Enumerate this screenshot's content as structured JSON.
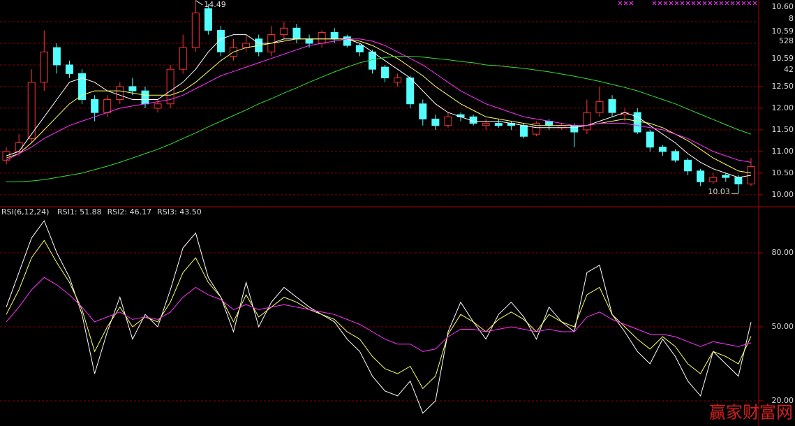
{
  "chart_data": [
    {
      "type": "candlestick",
      "open": [
        10.8,
        11.0,
        11.3,
        12.6,
        13.4,
        13.0,
        12.8,
        12.2,
        11.9,
        12.2,
        12.5,
        12.4,
        12.0,
        12.1,
        12.9,
        13.4,
        14.3,
        13.8,
        13.2,
        13.4,
        13.6,
        13.3,
        13.7,
        13.85,
        13.6,
        13.5,
        13.75,
        13.65,
        13.45,
        13.3,
        12.95,
        12.6,
        12.7,
        12.1,
        11.75,
        11.6,
        11.85,
        11.8,
        11.6,
        11.65,
        11.65,
        11.6,
        11.4,
        11.7,
        11.55,
        11.6,
        11.5,
        11.9,
        12.2,
        11.85,
        11.9,
        11.45,
        11.1,
        11.0,
        10.8,
        10.55,
        10.3,
        10.45,
        10.4,
        10.25
      ],
      "high": [
        11.1,
        11.4,
        12.9,
        13.8,
        13.5,
        13.1,
        12.9,
        12.3,
        12.3,
        12.6,
        12.7,
        12.5,
        12.2,
        13.0,
        13.7,
        14.49,
        14.4,
        13.9,
        13.6,
        13.7,
        13.7,
        13.9,
        14.0,
        13.95,
        13.7,
        13.8,
        13.85,
        13.7,
        13.5,
        13.35,
        13.0,
        12.8,
        12.75,
        12.2,
        11.85,
        11.9,
        11.9,
        11.85,
        11.75,
        11.75,
        11.7,
        11.65,
        11.7,
        11.75,
        11.65,
        11.65,
        12.2,
        12.5,
        12.3,
        12.0,
        12.0,
        11.5,
        11.15,
        11.05,
        10.85,
        10.6,
        10.5,
        10.5,
        10.45,
        10.85
      ],
      "low": [
        10.7,
        10.9,
        11.2,
        12.4,
        12.8,
        12.7,
        12.1,
        11.7,
        11.8,
        12.1,
        12.3,
        12.0,
        11.9,
        12.0,
        12.8,
        13.3,
        13.7,
        13.2,
        13.1,
        13.3,
        13.2,
        13.2,
        13.6,
        13.5,
        13.4,
        13.4,
        13.5,
        13.4,
        13.2,
        12.8,
        12.6,
        12.5,
        12.0,
        11.6,
        11.5,
        11.55,
        11.7,
        11.6,
        11.5,
        11.55,
        11.5,
        11.3,
        11.35,
        11.5,
        11.5,
        11.1,
        11.4,
        11.8,
        11.8,
        11.7,
        11.4,
        11.0,
        10.9,
        10.75,
        10.45,
        10.2,
        10.25,
        10.3,
        10.03,
        10.2
      ],
      "close": [
        11.0,
        11.2,
        12.6,
        13.3,
        13.0,
        12.8,
        12.2,
        11.9,
        12.2,
        12.5,
        12.4,
        12.1,
        12.1,
        12.9,
        13.4,
        14.2,
        13.8,
        13.3,
        13.4,
        13.5,
        13.3,
        13.7,
        13.85,
        13.6,
        13.5,
        13.75,
        13.6,
        13.45,
        13.3,
        12.9,
        12.7,
        12.7,
        12.1,
        11.75,
        11.6,
        11.8,
        11.8,
        11.65,
        11.65,
        11.6,
        11.6,
        11.35,
        11.65,
        11.6,
        11.6,
        11.45,
        11.9,
        12.15,
        11.9,
        11.9,
        11.45,
        11.1,
        11.0,
        10.8,
        10.55,
        10.3,
        10.4,
        10.4,
        10.25,
        10.65
      ],
      "up_color": "#ff3232",
      "down_color": "#54ffff",
      "series": [
        {
          "color": "#ffffff",
          "values": [
            10.9,
            11.0,
            11.4,
            11.8,
            12.2,
            12.6,
            12.7,
            12.6,
            12.4,
            12.3,
            12.2,
            12.2,
            12.2,
            12.4,
            12.6,
            12.9,
            13.3,
            13.6,
            13.7,
            13.7,
            13.5,
            13.5,
            13.6,
            13.6,
            13.6,
            13.6,
            13.6,
            13.6,
            13.5,
            13.3,
            13.1,
            12.9,
            12.7,
            12.4,
            12.1,
            11.9,
            11.8,
            11.7,
            11.7,
            11.7,
            11.65,
            11.6,
            11.55,
            11.55,
            11.55,
            11.55,
            11.6,
            11.7,
            11.8,
            11.9,
            11.8,
            11.6,
            11.4,
            11.2,
            10.95,
            10.75,
            10.6,
            10.5,
            10.4,
            10.45
          ]
        },
        {
          "color": "#ffff66",
          "values": [
            10.85,
            10.95,
            11.2,
            11.5,
            11.8,
            12.1,
            12.3,
            12.4,
            12.4,
            12.4,
            12.35,
            12.3,
            12.3,
            12.3,
            12.4,
            12.6,
            12.85,
            13.1,
            13.3,
            13.4,
            13.45,
            13.5,
            13.55,
            13.6,
            13.6,
            13.6,
            13.6,
            13.6,
            13.55,
            13.45,
            13.3,
            13.15,
            12.95,
            12.75,
            12.5,
            12.3,
            12.1,
            11.95,
            11.8,
            11.75,
            11.7,
            11.65,
            11.6,
            11.6,
            11.6,
            11.6,
            11.6,
            11.65,
            11.7,
            11.75,
            11.7,
            11.65,
            11.55,
            11.4,
            11.25,
            11.05,
            10.85,
            10.7,
            10.55,
            10.5
          ]
        },
        {
          "color": "#ff33ff",
          "values": [
            10.8,
            10.95,
            11.1,
            11.3,
            11.45,
            11.6,
            11.7,
            11.8,
            11.9,
            12.0,
            12.05,
            12.1,
            12.15,
            12.2,
            12.3,
            12.45,
            12.6,
            12.75,
            12.85,
            12.95,
            13.05,
            13.15,
            13.25,
            13.35,
            13.45,
            13.5,
            13.55,
            13.6,
            13.6,
            13.55,
            13.45,
            13.3,
            13.15,
            13.0,
            12.8,
            12.6,
            12.4,
            12.25,
            12.1,
            12.0,
            11.9,
            11.8,
            11.75,
            11.7,
            11.65,
            11.6,
            11.6,
            11.65,
            11.65,
            11.65,
            11.6,
            11.55,
            11.5,
            11.4,
            11.3,
            11.15,
            11.0,
            10.9,
            10.8,
            10.75
          ]
        },
        {
          "color": "#33dd33",
          "values": [
            10.3,
            10.3,
            10.32,
            10.35,
            10.4,
            10.45,
            10.5,
            10.58,
            10.66,
            10.75,
            10.85,
            10.95,
            11.05,
            11.17,
            11.3,
            11.43,
            11.57,
            11.7,
            11.83,
            11.96,
            12.1,
            12.22,
            12.35,
            12.47,
            12.6,
            12.72,
            12.84,
            12.95,
            13.05,
            13.12,
            13.17,
            13.2,
            13.2,
            13.18,
            13.15,
            13.12,
            13.08,
            13.05,
            13.0,
            12.98,
            12.95,
            12.92,
            12.88,
            12.84,
            12.79,
            12.74,
            12.68,
            12.62,
            12.55,
            12.48,
            12.4,
            12.3,
            12.2,
            12.1,
            11.98,
            11.86,
            11.74,
            11.62,
            11.5,
            11.4
          ]
        }
      ],
      "ylim": [
        9.74,
        14.5
      ],
      "yticks": [
        {
          "value": 12.5,
          "label": "12.50"
        },
        {
          "value": 12,
          "label": "12.00"
        },
        {
          "value": 11.5,
          "label": "11.50"
        },
        {
          "value": 11,
          "label": "11.00"
        },
        {
          "value": 10.5,
          "label": "10.50"
        },
        {
          "value": 10,
          "label": "10.00"
        }
      ],
      "extra_grid": [
        13,
        13.5,
        14
      ],
      "max_label": "14.49",
      "min_label": "10.03"
    },
    {
      "type": "line",
      "title": "RSI(6,12,24)",
      "series": [
        {
          "name": "RSI1: 51.88",
          "color": "#ffffff",
          "values": [
            58,
            72,
            86,
            93,
            80,
            70,
            55,
            31,
            48,
            62,
            45,
            55,
            50,
            65,
            82,
            88,
            70,
            62,
            48,
            68,
            50,
            60,
            66,
            62,
            58,
            55,
            52,
            45,
            40,
            30,
            24,
            22,
            28,
            15,
            20,
            48,
            60,
            52,
            45,
            55,
            60,
            54,
            45,
            58,
            52,
            48,
            72,
            75,
            55,
            48,
            40,
            35,
            45,
            38,
            28,
            22,
            40,
            35,
            30,
            51.88
          ]
        },
        {
          "name": "RSI2: 46.17",
          "color": "#ffff66",
          "values": [
            55,
            65,
            78,
            85,
            76,
            68,
            57,
            40,
            50,
            58,
            50,
            54,
            52,
            60,
            72,
            78,
            68,
            62,
            52,
            63,
            54,
            58,
            62,
            60,
            57,
            55,
            53,
            48,
            45,
            38,
            33,
            31,
            34,
            25,
            30,
            47,
            55,
            52,
            48,
            53,
            56,
            53,
            48,
            55,
            52,
            50,
            63,
            66,
            55,
            50,
            45,
            41,
            46,
            42,
            35,
            31,
            40,
            38,
            35,
            46.17
          ]
        },
        {
          "name": "RSI3: 43.50",
          "color": "#ff33ff",
          "values": [
            52,
            58,
            65,
            70,
            67,
            63,
            58,
            52,
            54,
            56,
            53,
            54,
            53,
            56,
            62,
            66,
            63,
            61,
            57,
            59,
            57,
            58,
            59,
            58,
            57,
            56,
            55,
            53,
            51,
            48,
            45,
            43,
            43,
            40,
            41,
            46,
            49,
            49,
            48,
            49,
            50,
            49,
            48,
            49,
            48,
            48,
            54,
            56,
            53,
            51,
            49,
            47,
            47,
            46,
            44,
            42,
            44,
            43,
            42,
            43.5
          ]
        }
      ],
      "ylim": [
        9.8,
        98.4
      ],
      "yticks": [
        {
          "value": 80,
          "label": "80.00"
        },
        {
          "value": 50,
          "label": "50.00"
        },
        {
          "value": 20,
          "label": "20.00"
        }
      ]
    }
  ],
  "info_panel": [
    {
      "text": "10.60",
      "color": "#ffffff"
    },
    {
      "text": "8",
      "color": "#ffffff"
    },
    {
      "text": "10.59",
      "color": "#ffffff"
    },
    {
      "text": "528",
      "color": "#ffffff"
    },
    {
      "text": "10.59",
      "color": "#33ff33"
    },
    {
      "text": "42",
      "color": "#33ff33"
    }
  ],
  "watermark": "赢家财富网"
}
